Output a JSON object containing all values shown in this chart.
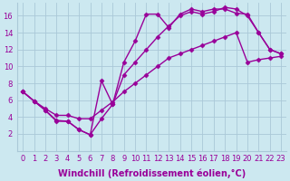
{
  "xlabel": "Windchill (Refroidissement éolien,°C)",
  "background_color": "#cce8f0",
  "line_color": "#990099",
  "grid_color": "#aac8d8",
  "xlim": [
    -0.5,
    23.5
  ],
  "ylim": [
    0,
    17.5
  ],
  "xticks": [
    0,
    1,
    2,
    3,
    4,
    5,
    6,
    7,
    8,
    9,
    10,
    11,
    12,
    13,
    14,
    15,
    16,
    17,
    18,
    19,
    20,
    21,
    22,
    23
  ],
  "yticks": [
    2,
    4,
    6,
    8,
    10,
    12,
    14,
    16
  ],
  "line1_x": [
    0,
    1,
    2,
    3,
    4,
    5,
    6,
    7,
    8,
    9,
    10,
    11,
    12,
    13,
    14,
    15,
    16,
    17,
    18,
    19,
    20,
    21,
    22,
    23
  ],
  "line1_y": [
    7.0,
    5.9,
    4.8,
    3.6,
    3.5,
    2.5,
    1.9,
    8.3,
    5.5,
    10.5,
    13.0,
    16.2,
    16.2,
    14.6,
    16.2,
    16.8,
    16.5,
    16.8,
    16.8,
    16.3,
    16.2,
    14.0,
    12.0,
    11.5
  ],
  "line2_x": [
    0,
    1,
    2,
    3,
    4,
    5,
    6,
    7,
    8,
    9,
    10,
    11,
    12,
    13,
    14,
    15,
    16,
    17,
    18,
    19,
    20,
    21,
    22,
    23
  ],
  "line2_y": [
    7.0,
    5.9,
    4.8,
    3.5,
    3.5,
    2.5,
    1.9,
    3.8,
    5.5,
    9.0,
    10.5,
    12.0,
    13.5,
    14.8,
    16.0,
    16.5,
    16.2,
    16.5,
    17.0,
    16.8,
    16.0,
    14.0,
    12.0,
    11.5
  ],
  "line3_x": [
    0,
    1,
    2,
    3,
    4,
    5,
    6,
    7,
    8,
    9,
    10,
    11,
    12,
    13,
    14,
    15,
    16,
    17,
    18,
    19,
    20,
    21,
    22,
    23
  ],
  "line3_y": [
    7.0,
    5.9,
    5.0,
    4.2,
    4.2,
    3.8,
    3.8,
    4.8,
    5.8,
    7.0,
    8.0,
    9.0,
    10.0,
    11.0,
    11.5,
    12.0,
    12.5,
    13.0,
    13.5,
    14.0,
    10.5,
    10.8,
    11.0,
    11.2
  ],
  "marker": "D",
  "marker_size": 2.5,
  "linewidth": 1.0,
  "tick_labelsize": 6.0,
  "xlabel_fontsize": 7.0,
  "xlabel_fontweight": "bold"
}
